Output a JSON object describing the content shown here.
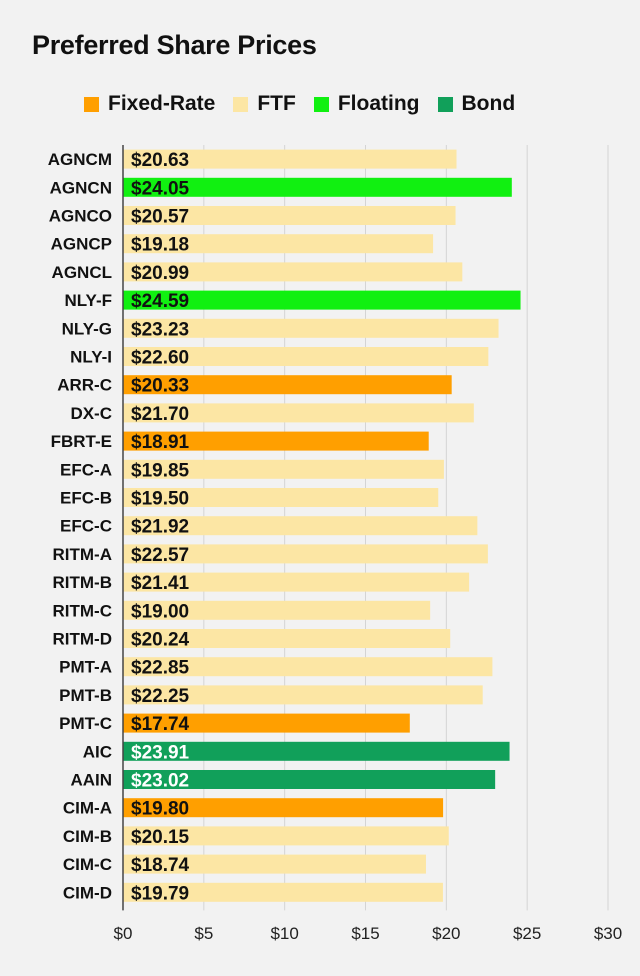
{
  "chart_data": {
    "type": "bar",
    "orientation": "horizontal",
    "title": "Preferred Share Prices",
    "legend": [
      {
        "name": "Fixed-Rate",
        "color": "#ff9f00"
      },
      {
        "name": "FTF",
        "color": "#fce6a4"
      },
      {
        "name": "Floating",
        "color": "#11f011"
      },
      {
        "name": "Bond",
        "color": "#11a05a"
      }
    ],
    "legend_position": "top",
    "categories": [
      "AGNCM",
      "AGNCN",
      "AGNCO",
      "AGNCP",
      "AGNCL",
      "NLY-F",
      "NLY-G",
      "NLY-I",
      "ARR-C",
      "DX-C",
      "FBRT-E",
      "EFC-A",
      "EFC-B",
      "EFC-C",
      "RITM-A",
      "RITM-B",
      "RITM-C",
      "RITM-D",
      "PMT-A",
      "PMT-B",
      "PMT-C",
      "AIC",
      "AAIN",
      "CIM-A",
      "CIM-B",
      "CIM-C",
      "CIM-D"
    ],
    "values": [
      20.63,
      24.05,
      20.57,
      19.18,
      20.99,
      24.59,
      23.23,
      22.6,
      20.33,
      21.7,
      18.91,
      19.85,
      19.5,
      21.92,
      22.57,
      21.41,
      19.0,
      20.24,
      22.85,
      22.25,
      17.74,
      23.91,
      23.02,
      19.8,
      20.15,
      18.74,
      19.79
    ],
    "value_labels": [
      "$20.63",
      "$24.05",
      "$20.57",
      "$19.18",
      "$20.99",
      "$24.59",
      "$23.23",
      "$22.60",
      "$20.33",
      "$21.70",
      "$18.91",
      "$19.85",
      "$19.50",
      "$21.92",
      "$22.57",
      "$21.41",
      "$19.00",
      "$20.24",
      "$22.85",
      "$22.25",
      "$17.74",
      "$23.91",
      "$23.02",
      "$19.80",
      "$20.15",
      "$18.74",
      "$19.79"
    ],
    "types": [
      "FTF",
      "Floating",
      "FTF",
      "FTF",
      "FTF",
      "Floating",
      "FTF",
      "FTF",
      "Fixed-Rate",
      "FTF",
      "Fixed-Rate",
      "FTF",
      "FTF",
      "FTF",
      "FTF",
      "FTF",
      "FTF",
      "FTF",
      "FTF",
      "FTF",
      "Fixed-Rate",
      "Bond",
      "Bond",
      "Fixed-Rate",
      "FTF",
      "FTF",
      "FTF"
    ],
    "xlim": [
      0,
      30
    ],
    "xticks": [
      0,
      5,
      10,
      15,
      20,
      25,
      30
    ],
    "xtick_labels": [
      "$0",
      "$5",
      "$10",
      "$15",
      "$20",
      "$25",
      "$30"
    ],
    "grid": "vertical",
    "background": "#f2f2f2",
    "gridline_color": "#d4d4d4"
  }
}
